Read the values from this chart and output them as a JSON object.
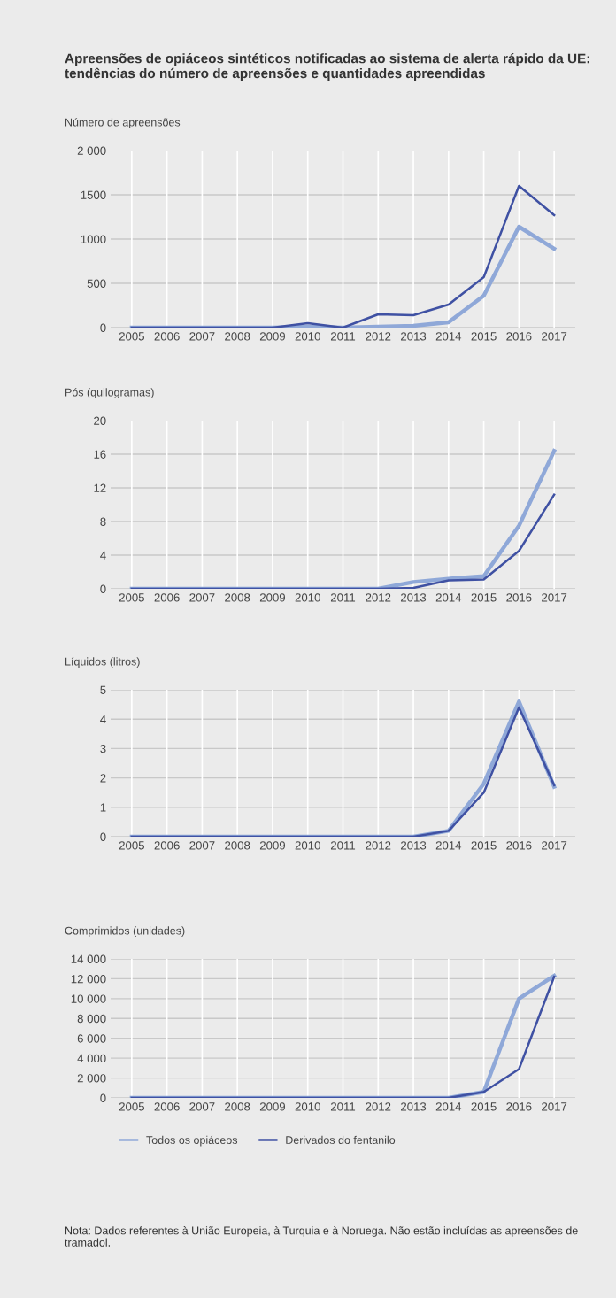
{
  "chart_data": [
    {
      "type": "line",
      "title": "Apreensões de opiáceos sintéticos notificadas ao sistema de alerta rápido da UE: tendências do número de apreensões e quantidades apreendidas",
      "ylabel": "Número de apreensões",
      "categories": [
        "2005",
        "2006",
        "2007",
        "2008",
        "2009",
        "2010",
        "2011",
        "2012",
        "2013",
        "2014",
        "2015",
        "2016",
        "2017"
      ],
      "series": [
        {
          "color": "#8fa8d8",
          "values": [
            0,
            0,
            0,
            0,
            0,
            10,
            0,
            10,
            20,
            60,
            360,
            1140,
            890
          ]
        },
        {
          "color": "#3f51a3",
          "values": [
            0,
            0,
            0,
            0,
            0,
            50,
            0,
            150,
            140,
            260,
            570,
            1600,
            1270
          ]
        }
      ],
      "ylim": [
        0,
        2000
      ],
      "yticks": [
        0,
        500,
        1000,
        1500,
        {
          "value": 2000,
          "label": "2 000"
        }
      ],
      "grid": true,
      "legend": false
    },
    {
      "type": "line",
      "ylabel": "Pós (quilogramas)",
      "categories": [
        "2005",
        "2006",
        "2007",
        "2008",
        "2009",
        "2010",
        "2011",
        "2012",
        "2013",
        "2014",
        "2015",
        "2016",
        "2017"
      ],
      "series": [
        {
          "color": "#8fa8d8",
          "values": [
            0,
            0,
            0,
            0,
            0,
            0,
            0,
            0,
            0.8,
            1.2,
            1.5,
            7.5,
            16.4
          ]
        },
        {
          "color": "#3f51a3",
          "values": [
            0,
            0,
            0,
            0,
            0,
            0,
            0,
            0,
            0.1,
            1.0,
            1.1,
            4.5,
            11.2
          ]
        }
      ],
      "ylim": [
        0,
        20
      ],
      "yticks": [
        0,
        4,
        8,
        12,
        16,
        20
      ],
      "grid": true,
      "legend": false
    },
    {
      "type": "line",
      "ylabel": "Líquidos (litros)",
      "categories": [
        "2005",
        "2006",
        "2007",
        "2008",
        "2009",
        "2010",
        "2011",
        "2012",
        "2013",
        "2014",
        "2015",
        "2016",
        "2017"
      ],
      "series": [
        {
          "color": "#8fa8d8",
          "values": [
            0,
            0,
            0,
            0,
            0,
            0,
            0,
            0,
            0,
            0.2,
            1.8,
            4.6,
            1.7
          ]
        },
        {
          "color": "#3f51a3",
          "values": [
            0,
            0,
            0,
            0,
            0,
            0,
            0,
            0,
            0,
            0.2,
            1.5,
            4.4,
            1.75
          ]
        }
      ],
      "ylim": [
        0,
        5
      ],
      "yticks": [
        0,
        1,
        2,
        3,
        4,
        5
      ],
      "grid": true,
      "legend": false
    },
    {
      "type": "line",
      "ylabel": "Comprimidos (unidades)",
      "categories": [
        "2005",
        "2006",
        "2007",
        "2008",
        "2009",
        "2010",
        "2011",
        "2012",
        "2013",
        "2014",
        "2015",
        "2016",
        "2017"
      ],
      "series": [
        {
          "name": "Todos os opiáceos",
          "color": "#8fa8d8",
          "values": [
            0,
            0,
            0,
            0,
            0,
            0,
            0,
            0,
            0,
            0,
            600,
            10000,
            12300
          ]
        },
        {
          "name": "Derivados do fentanilo",
          "color": "#3f51a3",
          "values": [
            0,
            0,
            0,
            0,
            0,
            0,
            0,
            0,
            0,
            0,
            600,
            2900,
            12200
          ]
        }
      ],
      "ylim": [
        0,
        14000
      ],
      "yticks": [
        0,
        {
          "value": 2000,
          "label": "2 000"
        },
        {
          "value": 4000,
          "label": "4 000"
        },
        {
          "value": 6000,
          "label": "6 000"
        },
        {
          "value": 8000,
          "label": "8 000"
        },
        {
          "value": 10000,
          "label": "10 000"
        },
        {
          "value": 12000,
          "label": "12 000"
        },
        {
          "value": 14000,
          "label": "14 000"
        }
      ],
      "grid": true,
      "legend": "bottom",
      "annotations": [
        "Nota: Dados referentes à União Europeia, à Turquia e à Noruega. Não estão incluídas as apreensões de tramadol."
      ]
    }
  ]
}
